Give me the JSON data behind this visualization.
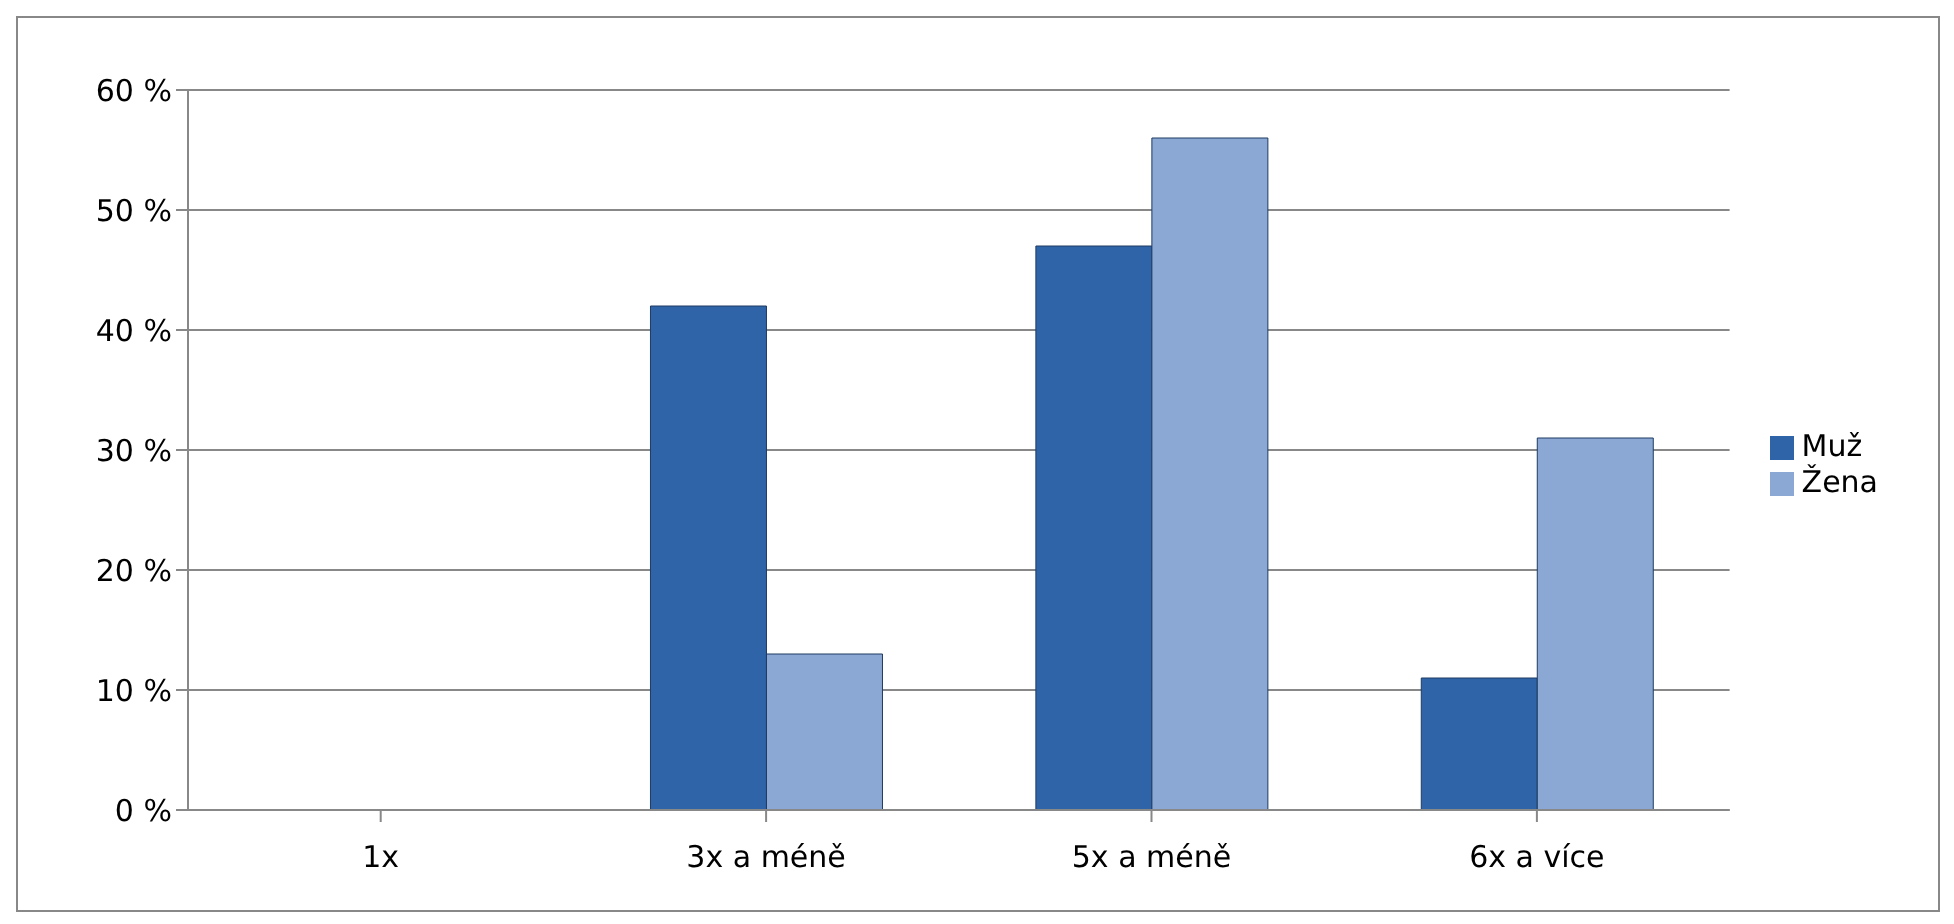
{
  "chart_data": {
    "type": "bar",
    "categories": [
      "1x",
      "3x a méně",
      "5x a méně",
      "6x a více"
    ],
    "series": [
      {
        "name": "Muž",
        "color": "#2f65a8",
        "values": [
          0,
          42,
          47,
          11
        ]
      },
      {
        "name": "Žena",
        "color": "#8ba7d4",
        "values": [
          0,
          13,
          56,
          31
        ]
      }
    ],
    "ylim": [
      0,
      60
    ],
    "yticks": [
      {
        "value": 0,
        "label": "0 %"
      },
      {
        "value": 10,
        "label": "10 %"
      },
      {
        "value": 20,
        "label": "20 %"
      },
      {
        "value": 30,
        "label": "30 %"
      },
      {
        "value": 40,
        "label": "40 %"
      },
      {
        "value": 50,
        "label": "50 %"
      },
      {
        "value": 60,
        "label": "60 %"
      }
    ],
    "grid": "y",
    "legend": "right"
  }
}
